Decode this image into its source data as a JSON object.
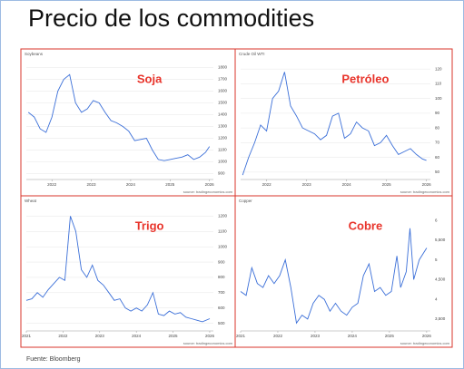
{
  "title": "Precio de los commodities",
  "footer": "Fuente: Bloomberg",
  "chart_data": [
    {
      "type": "line",
      "title": "Soybeans",
      "annotation": "Soja",
      "source": "source: tradingeconomics.com",
      "color": "#3b6fd8",
      "grid": true,
      "x": [
        2021.4,
        2021.55,
        2021.7,
        2021.85,
        2022.0,
        2022.15,
        2022.3,
        2022.45,
        2022.6,
        2022.75,
        2022.9,
        2023.05,
        2023.2,
        2023.35,
        2023.5,
        2023.65,
        2023.8,
        2023.95,
        2024.1,
        2024.25,
        2024.4,
        2024.55,
        2024.7,
        2024.85,
        2025.0,
        2025.15,
        2025.3,
        2025.45,
        2025.6,
        2025.75,
        2025.9,
        2026.0
      ],
      "values": [
        1420,
        1380,
        1280,
        1250,
        1380,
        1600,
        1700,
        1740,
        1500,
        1420,
        1450,
        1520,
        1500,
        1420,
        1350,
        1330,
        1300,
        1260,
        1180,
        1190,
        1200,
        1100,
        1020,
        1010,
        1020,
        1030,
        1040,
        1060,
        1020,
        1040,
        1080,
        1130
      ],
      "xlim": [
        2021.35,
        2026.1
      ],
      "xticks": [
        2022,
        2023,
        2024,
        2025,
        2026
      ],
      "ylim": [
        850,
        1850
      ],
      "yticks": [
        900,
        1000,
        1100,
        1200,
        1300,
        1400,
        1500,
        1600,
        1700,
        1800
      ]
    },
    {
      "type": "line",
      "title": "Crude Oil WTI",
      "annotation": "Petróleo",
      "source": "source: tradingeconomics.com",
      "color": "#3b6fd8",
      "grid": true,
      "x": [
        2021.4,
        2021.55,
        2021.7,
        2021.85,
        2022.0,
        2022.15,
        2022.3,
        2022.45,
        2022.6,
        2022.75,
        2022.9,
        2023.05,
        2023.2,
        2023.35,
        2023.5,
        2023.65,
        2023.8,
        2023.95,
        2024.1,
        2024.25,
        2024.4,
        2024.55,
        2024.7,
        2024.85,
        2025.0,
        2025.15,
        2025.3,
        2025.45,
        2025.6,
        2025.75,
        2025.9,
        2026.0
      ],
      "values": [
        48,
        60,
        70,
        82,
        78,
        100,
        105,
        118,
        95,
        88,
        80,
        78,
        76,
        72,
        75,
        88,
        90,
        73,
        76,
        84,
        80,
        78,
        68,
        70,
        75,
        68,
        62,
        64,
        66,
        62,
        59,
        58
      ],
      "xlim": [
        2021.35,
        2026.1
      ],
      "xticks": [
        2022,
        2023,
        2024,
        2025,
        2026
      ],
      "ylim": [
        45,
        125
      ],
      "yticks": [
        50,
        60,
        70,
        80,
        90,
        100,
        110,
        120
      ]
    },
    {
      "type": "line",
      "title": "Wheat",
      "annotation": "Trigo",
      "source": "source: tradingeconomics.com",
      "color": "#3b6fd8",
      "grid": true,
      "x": [
        2021.0,
        2021.15,
        2021.3,
        2021.45,
        2021.6,
        2021.75,
        2021.9,
        2022.05,
        2022.2,
        2022.35,
        2022.5,
        2022.65,
        2022.8,
        2022.95,
        2023.1,
        2023.25,
        2023.4,
        2023.55,
        2023.7,
        2023.85,
        2024.0,
        2024.15,
        2024.3,
        2024.45,
        2024.6,
        2024.75,
        2024.9,
        2025.05,
        2025.2,
        2025.35,
        2025.5,
        2025.65,
        2025.8,
        2026.0
      ],
      "values": [
        650,
        660,
        700,
        670,
        720,
        760,
        800,
        780,
        1200,
        1100,
        850,
        800,
        880,
        780,
        750,
        700,
        650,
        660,
        600,
        580,
        600,
        580,
        620,
        700,
        560,
        550,
        580,
        560,
        570,
        540,
        530,
        520,
        510,
        530
      ],
      "xlim": [
        2021.0,
        2026.1
      ],
      "xticks": [
        2021,
        2022,
        2023,
        2024,
        2025,
        2026
      ],
      "ylim": [
        450,
        1250
      ],
      "yticks": [
        500,
        600,
        700,
        800,
        900,
        1000,
        1100,
        1200
      ]
    },
    {
      "type": "line",
      "title": "Copper",
      "annotation": "Cobre",
      "source": "source: tradingeconomics.com",
      "color": "#3b6fd8",
      "grid": false,
      "x": [
        2021.0,
        2021.15,
        2021.3,
        2021.45,
        2021.6,
        2021.75,
        2021.9,
        2022.05,
        2022.2,
        2022.35,
        2022.5,
        2022.65,
        2022.8,
        2022.95,
        2023.1,
        2023.25,
        2023.4,
        2023.55,
        2023.7,
        2023.85,
        2024.0,
        2024.15,
        2024.3,
        2024.45,
        2024.6,
        2024.75,
        2024.9,
        2025.05,
        2025.2,
        2025.3,
        2025.45,
        2025.55,
        2025.65,
        2025.8,
        2026.0
      ],
      "values": [
        4.2,
        4.1,
        4.8,
        4.4,
        4.3,
        4.6,
        4.4,
        4.6,
        5.0,
        4.3,
        3.4,
        3.6,
        3.5,
        3.9,
        4.1,
        4.0,
        3.7,
        3.9,
        3.7,
        3.6,
        3.8,
        3.9,
        4.6,
        4.9,
        4.2,
        4.3,
        4.1,
        4.2,
        5.1,
        4.3,
        4.7,
        5.8,
        4.5,
        5.0,
        5.3
      ],
      "xlim": [
        2021.0,
        2026.1
      ],
      "xticks": [
        2021,
        2022,
        2023,
        2024,
        2025,
        2026
      ],
      "ylim": [
        3.2,
        6.3
      ],
      "yticks": [
        {
          "value": 3.5,
          "label": "3,500"
        },
        4,
        {
          "value": 4.5,
          "label": "4,500"
        },
        5,
        {
          "value": 5.5,
          "label": "5,500"
        },
        6
      ]
    }
  ]
}
